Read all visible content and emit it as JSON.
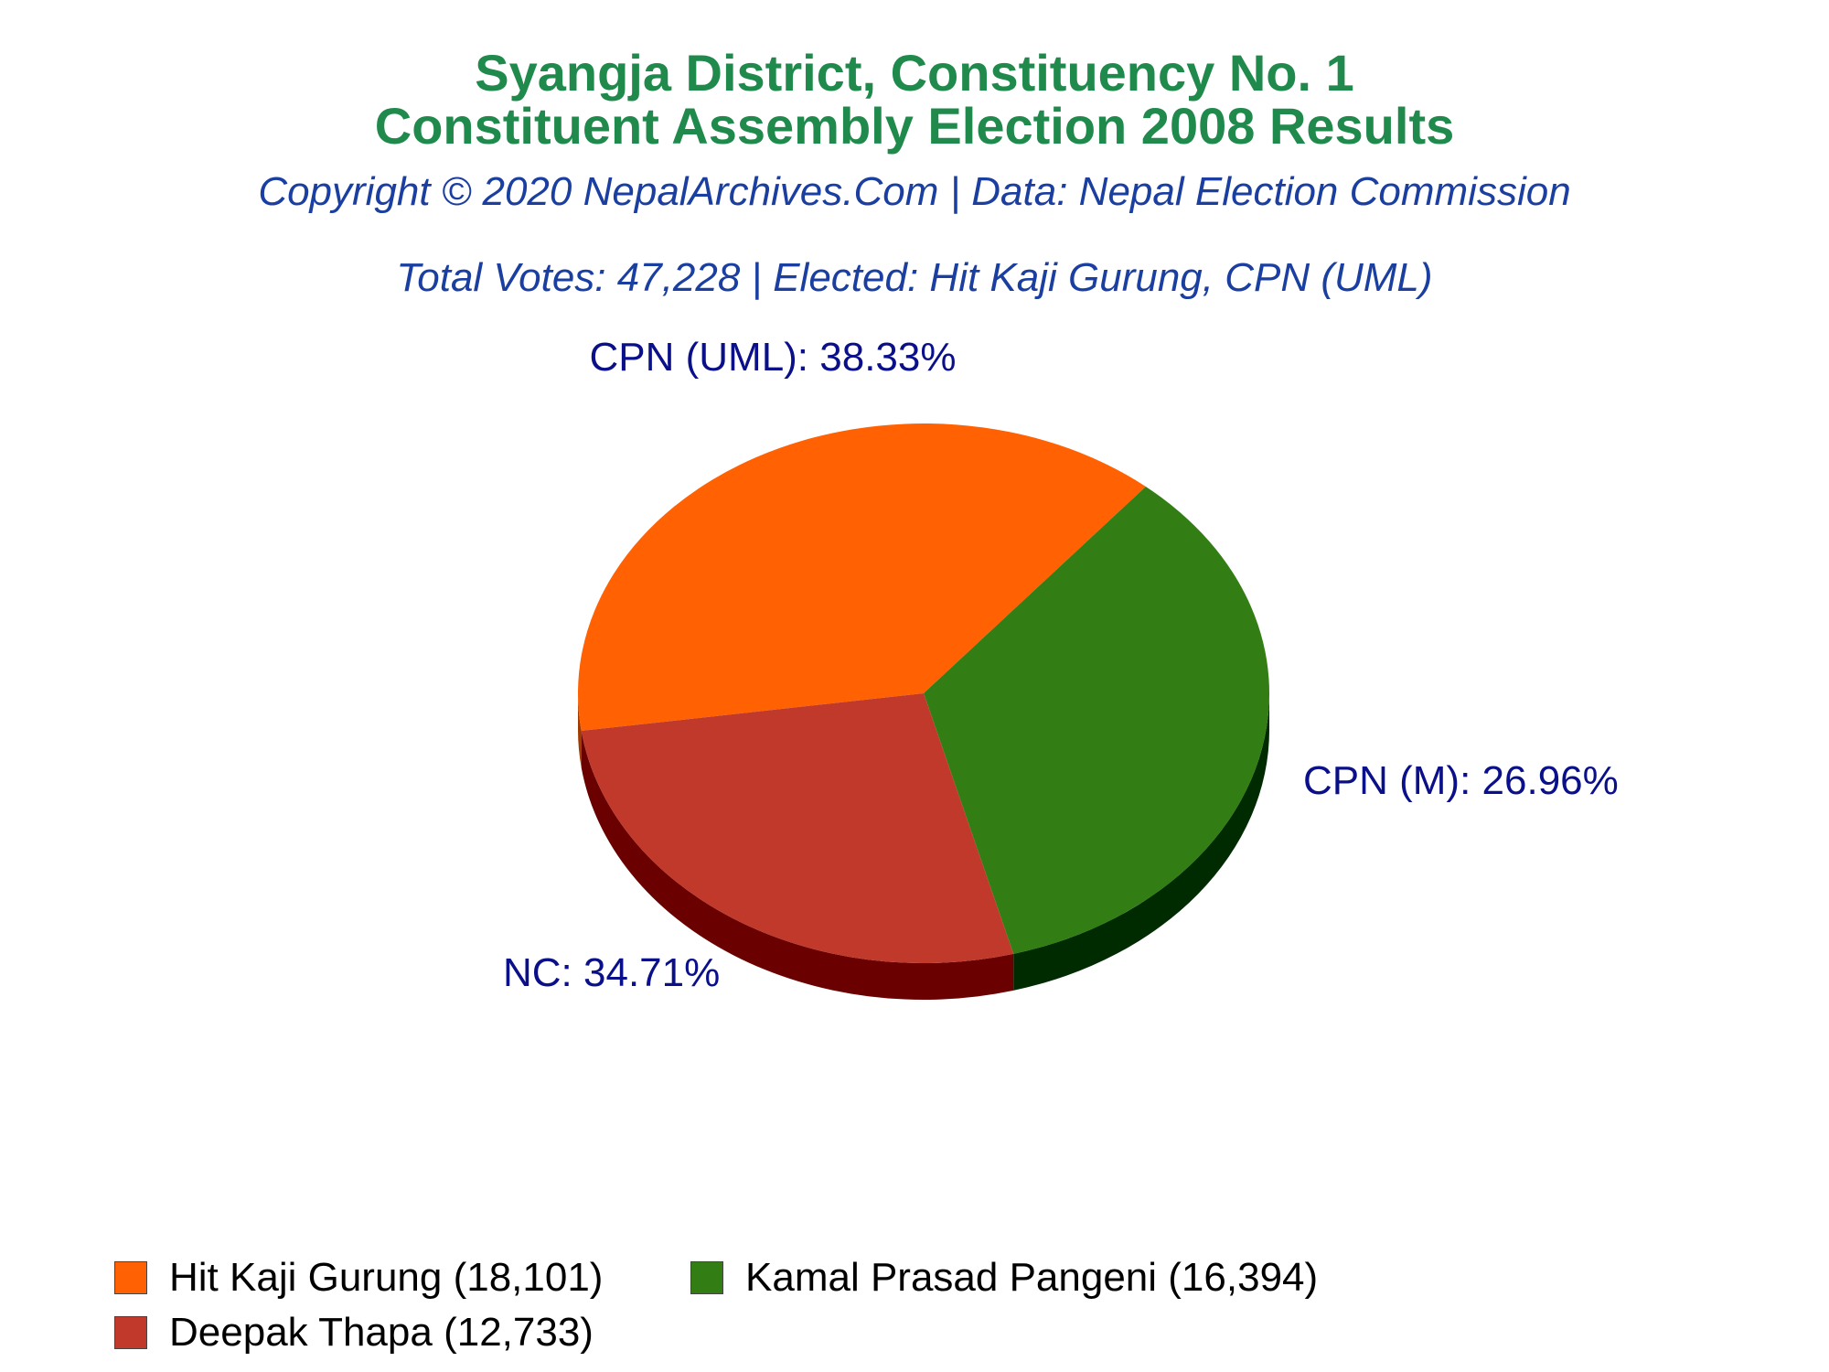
{
  "header": {
    "title_line1": "Syangja District, Constituency No. 1",
    "title_line2": "Constituent Assembly Election 2008 Results",
    "copyright": "Copyright © 2020 NepalArchives.Com | Data: Nepal Election Commission",
    "summary": "Total Votes: 47,228 | Elected: Hit Kaji Gurung, CPN (UML)"
  },
  "chart_data": {
    "type": "pie",
    "categories": [
      "CPN (UML)",
      "NC",
      "CPN (M)"
    ],
    "values": [
      38.33,
      34.71,
      26.96
    ],
    "labels": [
      "CPN (UML): 38.33%",
      "NC: 34.71%",
      "CPN (M): 26.96%"
    ],
    "colors": [
      "#ff6103",
      "#327e15",
      "#c0392b"
    ],
    "side_colors": [
      "#a03a00",
      "#002a00",
      "#6a0000"
    ],
    "label_color": "#0a0f8a",
    "legend": [
      {
        "label": "Hit Kaji Gurung (18,101)",
        "color": "#ff6103"
      },
      {
        "label": "Kamal Prasad Pangeni (16,394)",
        "color": "#327e15"
      },
      {
        "label": "Deepak Thapa (12,733)",
        "color": "#c0392b"
      }
    ],
    "legend_placement": "bottom",
    "style": "3d-tilted"
  }
}
